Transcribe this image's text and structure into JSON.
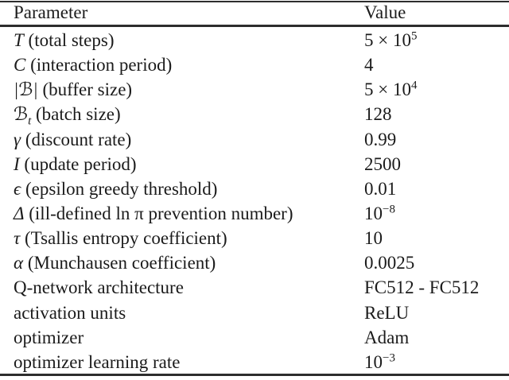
{
  "table": {
    "header": {
      "parameter": "Parameter",
      "value": "Value"
    },
    "rows": [
      {
        "sym": "T",
        "sub": "",
        "desc": " (total steps)",
        "val": "5 × 10",
        "vsup": "5"
      },
      {
        "sym": "C",
        "sub": "",
        "desc": " (interaction period)",
        "val": "4",
        "vsup": ""
      },
      {
        "sym": "|ℬ|",
        "sub": "",
        "desc": " (buffer size)",
        "val": "5 × 10",
        "vsup": "4"
      },
      {
        "sym": "ℬ",
        "sub": "t",
        "desc": " (batch size)",
        "val": "128",
        "vsup": ""
      },
      {
        "sym": "γ",
        "sub": "",
        "desc": " (discount rate)",
        "val": "0.99",
        "vsup": ""
      },
      {
        "sym": "I",
        "sub": "",
        "desc": " (update period)",
        "val": "2500",
        "vsup": ""
      },
      {
        "sym": "ϵ",
        "sub": "",
        "desc": " (epsilon greedy threshold)",
        "val": "0.01",
        "vsup": ""
      },
      {
        "sym": "Δ",
        "sub": "",
        "desc": " (ill-defined ln π prevention number)",
        "val": "10",
        "vsup": "−8"
      },
      {
        "sym": "τ",
        "sub": "",
        "desc": " (Tsallis entropy coefficient)",
        "val": "10",
        "vsup": ""
      },
      {
        "sym": "α",
        "sub": "",
        "desc": " (Munchausen coefficient)",
        "val": "0.0025",
        "vsup": ""
      },
      {
        "sym": "",
        "sub": "",
        "desc": "Q-network architecture",
        "val": "FC512 - FC512",
        "vsup": ""
      },
      {
        "sym": "",
        "sub": "",
        "desc": "activation units",
        "val": "ReLU",
        "vsup": ""
      },
      {
        "sym": "",
        "sub": "",
        "desc": "optimizer",
        "val": "Adam",
        "vsup": ""
      },
      {
        "sym": "",
        "sub": "",
        "desc": "optimizer learning rate",
        "val": "10",
        "vsup": "−3"
      }
    ]
  },
  "colors": {
    "background": "#ffffff",
    "text": "#1b1b1b",
    "rule": "#2d2d2d"
  }
}
